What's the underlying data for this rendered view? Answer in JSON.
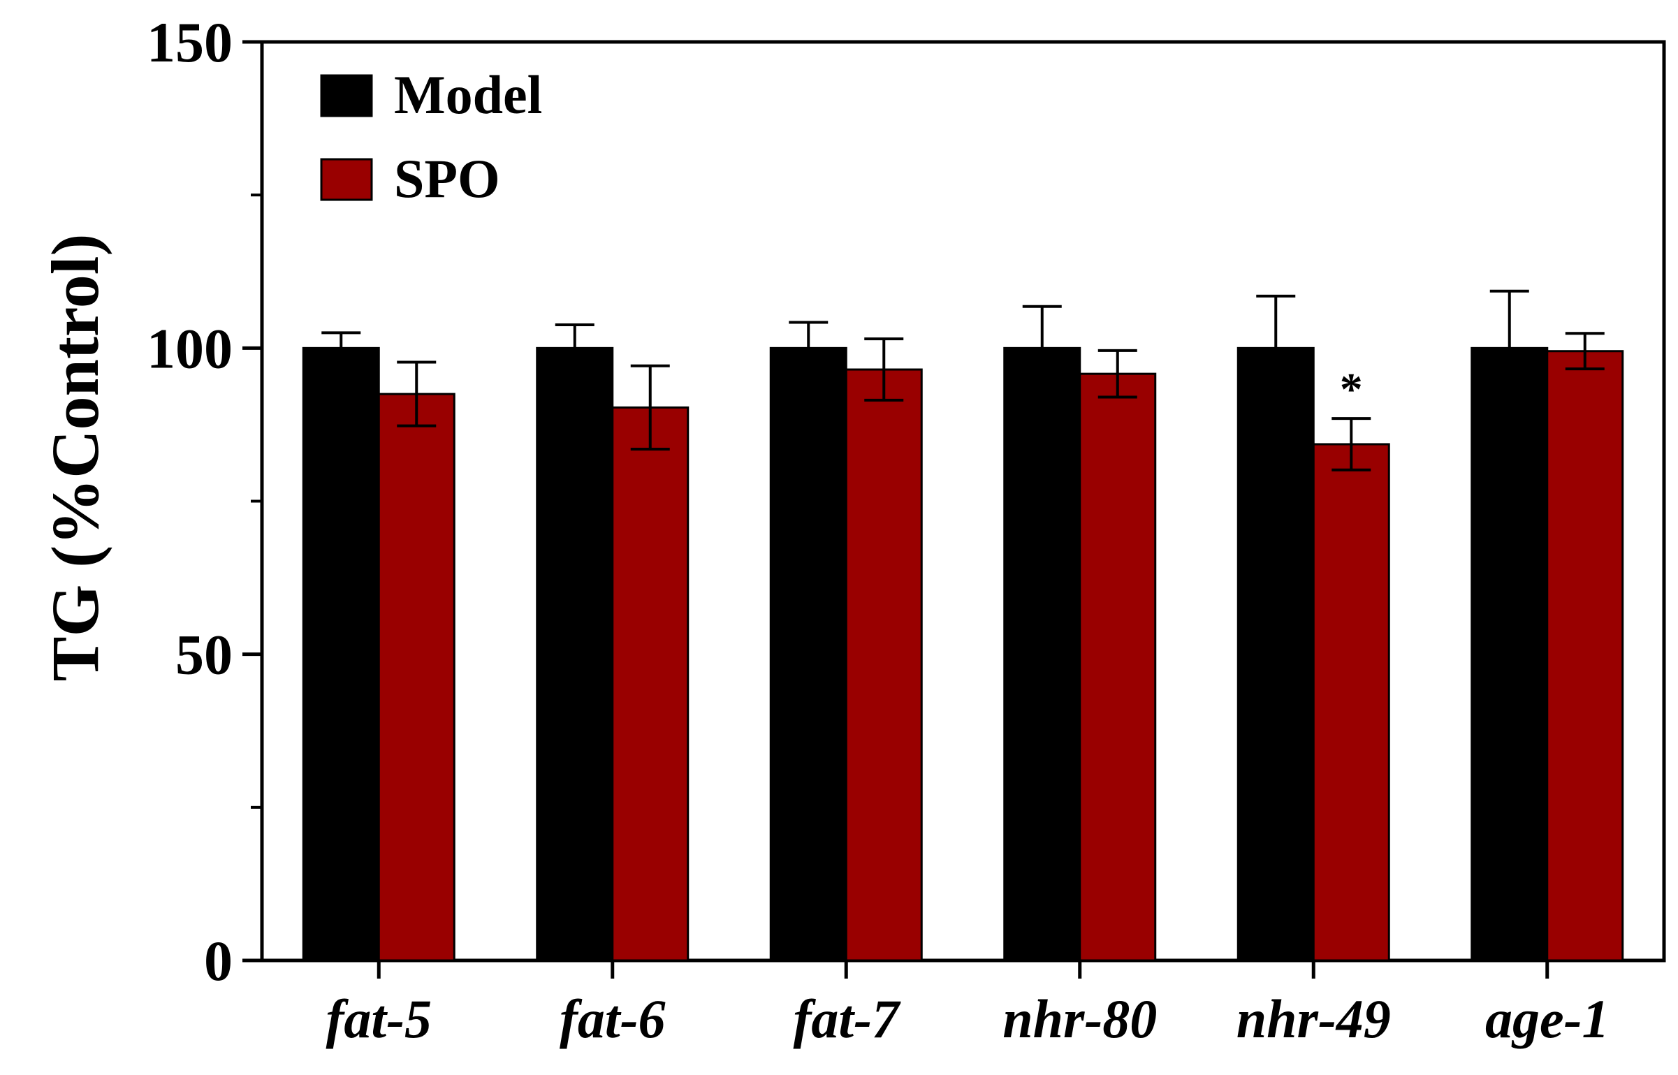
{
  "chart_data": {
    "type": "bar",
    "title": "",
    "xlabel": "",
    "ylabel": "TG (%Control)",
    "ylim": [
      0,
      150
    ],
    "yticks": [
      0,
      50,
      100,
      150
    ],
    "minor_yticks": [
      25,
      75,
      125
    ],
    "categories": [
      "fat-5",
      "fat-6",
      "fat-7",
      "nhr-80",
      "nhr-49",
      "age-1"
    ],
    "series": [
      {
        "name": "Model",
        "color": "#000000",
        "values": [
          100,
          100,
          100,
          100,
          100,
          100
        ],
        "errors": [
          2.5,
          3.8,
          4.2,
          6.8,
          8.5,
          9.3
        ]
      },
      {
        "name": "SPO",
        "color": "#990000",
        "values": [
          92.5,
          90.3,
          96.5,
          95.8,
          84.3,
          99.5
        ],
        "errors": [
          5.2,
          6.8,
          5.0,
          3.8,
          4.2,
          2.9
        ]
      }
    ],
    "annotations": [
      {
        "category": "nhr-49",
        "series": "SPO",
        "text": "*"
      }
    ],
    "legend_position": "top-left",
    "grid": false
  }
}
